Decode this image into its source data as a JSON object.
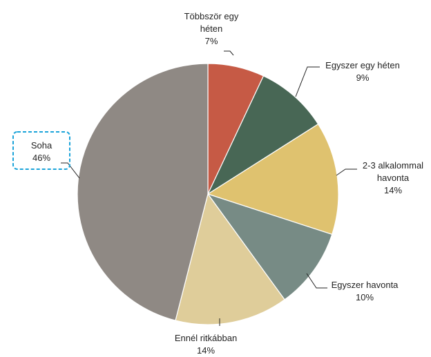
{
  "chart_data": {
    "type": "pie",
    "title": "",
    "slices": [
      {
        "label_lines": [
          "Többször egy",
          "héten"
        ],
        "value": 7,
        "percent_label": "7%",
        "color": "#C65A45"
      },
      {
        "label_lines": [
          "Egyszer egy héten"
        ],
        "value": 9,
        "percent_label": "9%",
        "color": "#486755"
      },
      {
        "label_lines": [
          "2-3 alkalommal",
          "havonta"
        ],
        "value": 14,
        "percent_label": "14%",
        "color": "#DFC26F"
      },
      {
        "label_lines": [
          "Egyszer havonta"
        ],
        "value": 10,
        "percent_label": "10%",
        "color": "#778B85"
      },
      {
        "label_lines": [
          "Ennél ritkábban"
        ],
        "value": 14,
        "percent_label": "14%",
        "color": "#DFCD9A"
      },
      {
        "label_lines": [
          "Soha"
        ],
        "value": 46,
        "percent_label": "46%",
        "color": "#8F8984"
      }
    ],
    "start_angle": "12 o'clock",
    "direction": "clockwise",
    "legend": "none",
    "highlighted_label": "Soha",
    "highlight_color": "#1AA3D9"
  }
}
